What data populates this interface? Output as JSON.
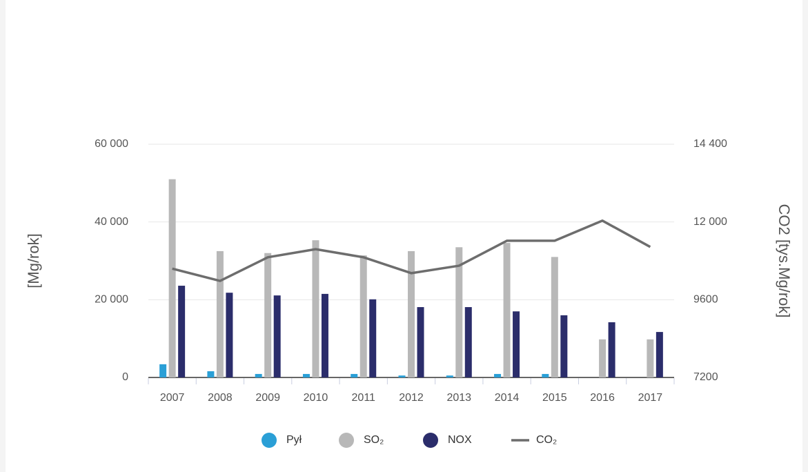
{
  "chart_data": {
    "type": "bar",
    "categories": [
      "2007",
      "2008",
      "2009",
      "2010",
      "2011",
      "2012",
      "2013",
      "2014",
      "2015",
      "2016",
      "2017"
    ],
    "series": [
      {
        "name": "Pył",
        "color": "#2a9fd6",
        "values": [
          3400,
          1600,
          900,
          900,
          900,
          500,
          500,
          900,
          900,
          0,
          0
        ]
      },
      {
        "name": "SO₂",
        "color": "#b8b8b8",
        "values": [
          51000,
          32500,
          32000,
          35300,
          31400,
          32500,
          33500,
          34600,
          31000,
          9800,
          9800
        ]
      },
      {
        "name": "NOX",
        "color": "#2b2d6b",
        "values": [
          23600,
          21800,
          21100,
          21500,
          20100,
          18100,
          18100,
          17000,
          16000,
          14200,
          11700
        ]
      },
      {
        "name": "CO₂",
        "color": "#6d6d6d",
        "type": "line",
        "axis": "y2",
        "values": [
          10560,
          10180,
          10910,
          11160,
          10910,
          10420,
          10650,
          11420,
          11420,
          12040,
          11230
        ]
      }
    ],
    "ylabel": "[Mg/rok]",
    "y2label": "CO2 [tys.Mg/rok]",
    "ylim": [
      0,
      60000
    ],
    "yticks": [
      0,
      {
        "value": 20000,
        "label": "20 000"
      },
      {
        "value": 40000,
        "label": "40 000"
      },
      {
        "value": 60000,
        "label": "60 000"
      }
    ],
    "y2lim": [
      7200,
      14400
    ],
    "y2ticks": [
      7200,
      9600,
      {
        "value": 12000,
        "label": "12 000"
      },
      {
        "value": 14400,
        "label": "14 400"
      }
    ],
    "grid": true,
    "legend": "bottom"
  }
}
